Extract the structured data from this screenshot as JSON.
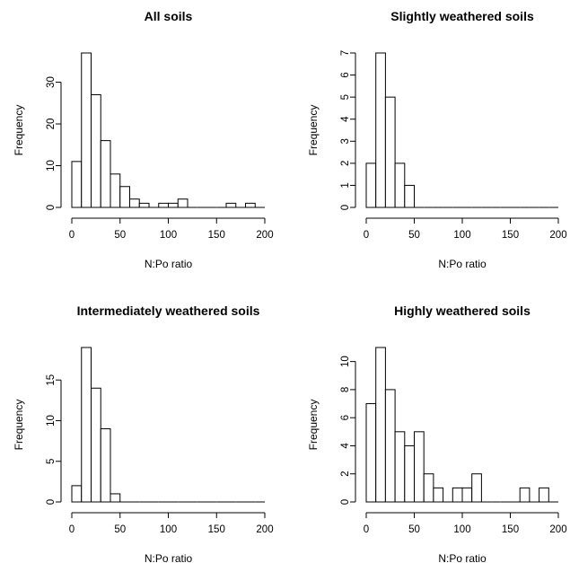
{
  "chart_data": [
    {
      "type": "bar",
      "title": "All soils",
      "xlabel": "N:Po ratio",
      "ylabel": "Frequency",
      "bin_width": 10,
      "xlim": [
        0,
        200
      ],
      "ylim": [
        0,
        37
      ],
      "xticks": [
        0,
        50,
        100,
        150,
        200
      ],
      "yticks": [
        0,
        10,
        20,
        30
      ],
      "values": [
        11,
        37,
        27,
        16,
        8,
        5,
        2,
        1,
        0,
        1,
        1,
        2,
        0,
        0,
        0,
        0,
        1,
        0,
        1,
        0
      ],
      "grid": false
    },
    {
      "type": "bar",
      "title": "Slightly weathered soils",
      "xlabel": "N:Po ratio",
      "ylabel": "Frequency",
      "bin_width": 10,
      "xlim": [
        0,
        200
      ],
      "ylim": [
        0,
        7
      ],
      "xticks": [
        0,
        50,
        100,
        150,
        200
      ],
      "yticks": [
        0,
        1,
        2,
        3,
        4,
        5,
        6,
        7
      ],
      "values": [
        2,
        7,
        5,
        2,
        1,
        0,
        0,
        0,
        0,
        0,
        0,
        0,
        0,
        0,
        0,
        0,
        0,
        0,
        0,
        0
      ],
      "grid": false
    },
    {
      "type": "bar",
      "title": "Intermediately weathered soils",
      "xlabel": "N:Po ratio",
      "ylabel": "Frequency",
      "bin_width": 10,
      "xlim": [
        0,
        200
      ],
      "ylim": [
        0,
        19
      ],
      "xticks": [
        0,
        50,
        100,
        150,
        200
      ],
      "yticks": [
        0,
        5,
        10,
        15
      ],
      "values": [
        2,
        19,
        14,
        9,
        1,
        0,
        0,
        0,
        0,
        0,
        0,
        0,
        0,
        0,
        0,
        0,
        0,
        0,
        0,
        0
      ],
      "grid": false
    },
    {
      "type": "bar",
      "title": "Highly weathered soils",
      "xlabel": "N:Po ratio",
      "ylabel": "Frequency",
      "bin_width": 10,
      "xlim": [
        0,
        200
      ],
      "ylim": [
        0,
        11
      ],
      "xticks": [
        0,
        50,
        100,
        150,
        200
      ],
      "yticks": [
        0,
        2,
        4,
        6,
        8,
        10
      ],
      "values": [
        7,
        11,
        8,
        5,
        4,
        5,
        2,
        1,
        0,
        1,
        1,
        2,
        0,
        0,
        0,
        0,
        1,
        0,
        1,
        0
      ],
      "grid": false
    }
  ]
}
